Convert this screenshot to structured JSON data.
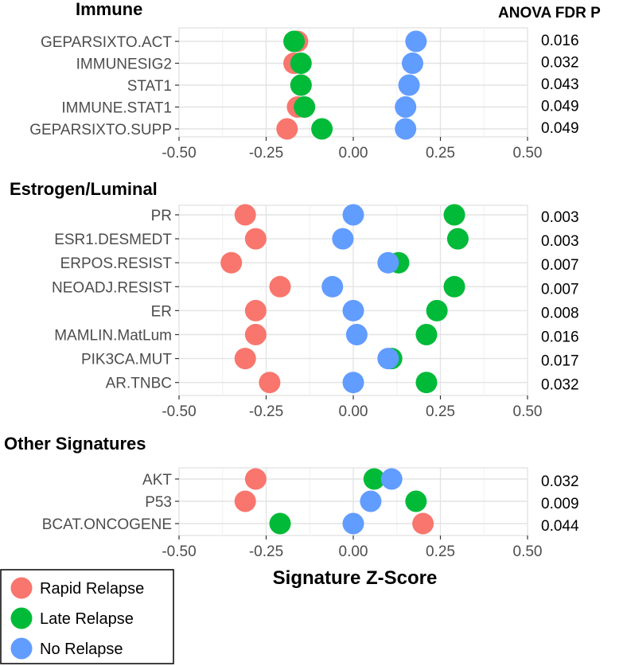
{
  "pvalue_header": "ANOVA FDR P",
  "xlabel": "Signature Z-Score",
  "legend": [
    {
      "label": "Rapid Relapse",
      "color": "#F8766D"
    },
    {
      "label": "Late Relapse",
      "color": "#00BA38"
    },
    {
      "label": "No Relapse",
      "color": "#619CFF"
    }
  ],
  "chart_data": [
    {
      "type": "scatter",
      "title": "Immune",
      "xlim": [
        -0.5,
        0.5
      ],
      "x_ticks": [
        "-0.50",
        "-0.25",
        "0.00",
        "0.25",
        "0.50"
      ],
      "categories": [
        "GEPARSIXTO.ACT",
        "IMMUNESIG2",
        "STAT1",
        "IMMUNE.STAT1",
        "GEPARSIXTO.SUPP"
      ],
      "pvalues": [
        "0.016",
        "0.032",
        "0.043",
        "0.049",
        "0.049"
      ],
      "series": [
        {
          "name": "Rapid Relapse",
          "values": [
            -0.16,
            -0.17,
            -0.15,
            -0.16,
            -0.19
          ]
        },
        {
          "name": "Late Relapse",
          "values": [
            -0.17,
            -0.15,
            -0.15,
            -0.14,
            -0.09
          ]
        },
        {
          "name": "No Relapse",
          "values": [
            0.18,
            0.17,
            0.16,
            0.15,
            0.15
          ]
        }
      ]
    },
    {
      "type": "scatter",
      "title": "Estrogen/Luminal",
      "xlim": [
        -0.5,
        0.5
      ],
      "x_ticks": [
        "-0.50",
        "-0.25",
        "0.00",
        "0.25",
        "0.50"
      ],
      "categories": [
        "PR",
        "ESR1.DESMEDT",
        "ERPOS.RESIST",
        "NEOADJ.RESIST",
        "ER",
        "MAMLIN.MatLum",
        "PIK3CA.MUT",
        "AR.TNBC"
      ],
      "pvalues": [
        "0.003",
        "0.003",
        "0.007",
        "0.007",
        "0.008",
        "0.016",
        "0.017",
        "0.032"
      ],
      "series": [
        {
          "name": "Rapid Relapse",
          "values": [
            -0.31,
            -0.28,
            -0.35,
            -0.21,
            -0.28,
            -0.28,
            -0.31,
            -0.24
          ]
        },
        {
          "name": "Late Relapse",
          "values": [
            0.29,
            0.3,
            0.13,
            0.29,
            0.24,
            0.21,
            0.11,
            0.21
          ]
        },
        {
          "name": "No Relapse",
          "values": [
            0.0,
            -0.03,
            0.1,
            -0.06,
            0.0,
            0.01,
            0.1,
            0.0
          ]
        }
      ]
    },
    {
      "type": "scatter",
      "title": "Other Signatures",
      "xlim": [
        -0.5,
        0.5
      ],
      "x_ticks": [
        "-0.50",
        "-0.25",
        "0.00",
        "0.25",
        "0.50"
      ],
      "categories": [
        "AKT",
        "P53",
        "BCAT.ONCOGENE"
      ],
      "pvalues": [
        "0.032",
        "0.009",
        "0.044"
      ],
      "series": [
        {
          "name": "Rapid Relapse",
          "values": [
            -0.28,
            -0.31,
            0.2
          ]
        },
        {
          "name": "Late Relapse",
          "values": [
            0.06,
            0.18,
            -0.21
          ]
        },
        {
          "name": "No Relapse",
          "values": [
            0.11,
            0.05,
            0.0
          ]
        }
      ]
    }
  ]
}
